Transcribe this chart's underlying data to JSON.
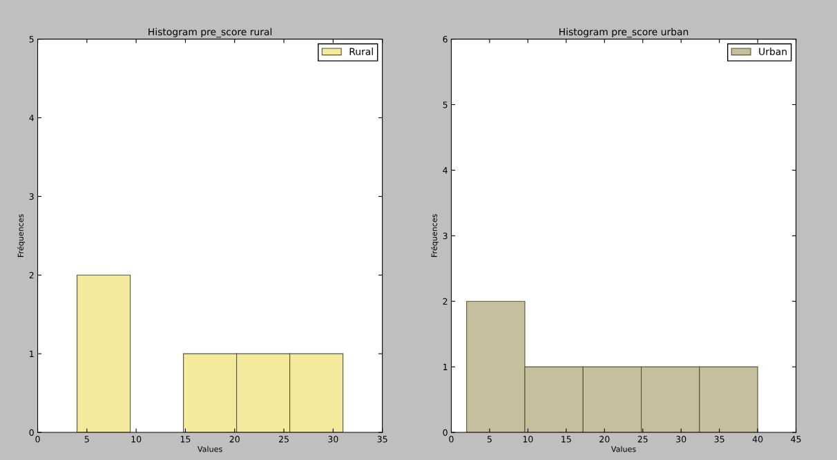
{
  "chart_data": [
    {
      "type": "histogram",
      "title": "Histogram pre_score rural",
      "xlabel": "Values",
      "ylabel": "Fréquences",
      "bins": [
        4,
        9.4,
        14.8,
        20.2,
        25.6,
        31
      ],
      "series": [
        {
          "name": "Rural",
          "color": "#f4ea9d",
          "values": [
            2,
            0,
            1,
            1,
            1
          ]
        }
      ],
      "xlim": [
        0,
        35
      ],
      "xticks": [
        0,
        5,
        10,
        15,
        20,
        25,
        30,
        35
      ],
      "ylim": [
        0,
        5
      ],
      "yticks": [
        0,
        1,
        2,
        3,
        4,
        5
      ],
      "legend": "top right",
      "grid": false
    },
    {
      "type": "histogram",
      "title": "Histogram pre_score urban",
      "xlabel": "Values",
      "ylabel": "Fréquences",
      "bins": [
        2,
        9.6,
        17.2,
        24.8,
        32.4,
        40
      ],
      "series": [
        {
          "name": "Urban",
          "color": "#c5bf9e",
          "values": [
            2,
            1,
            1,
            1,
            1
          ]
        }
      ],
      "xlim": [
        0,
        45
      ],
      "xticks": [
        0,
        5,
        10,
        15,
        20,
        25,
        30,
        35,
        40,
        45
      ],
      "ylim": [
        0,
        6
      ],
      "yticks": [
        0,
        1,
        2,
        3,
        4,
        5,
        6
      ],
      "legend": "top right",
      "grid": false
    }
  ]
}
